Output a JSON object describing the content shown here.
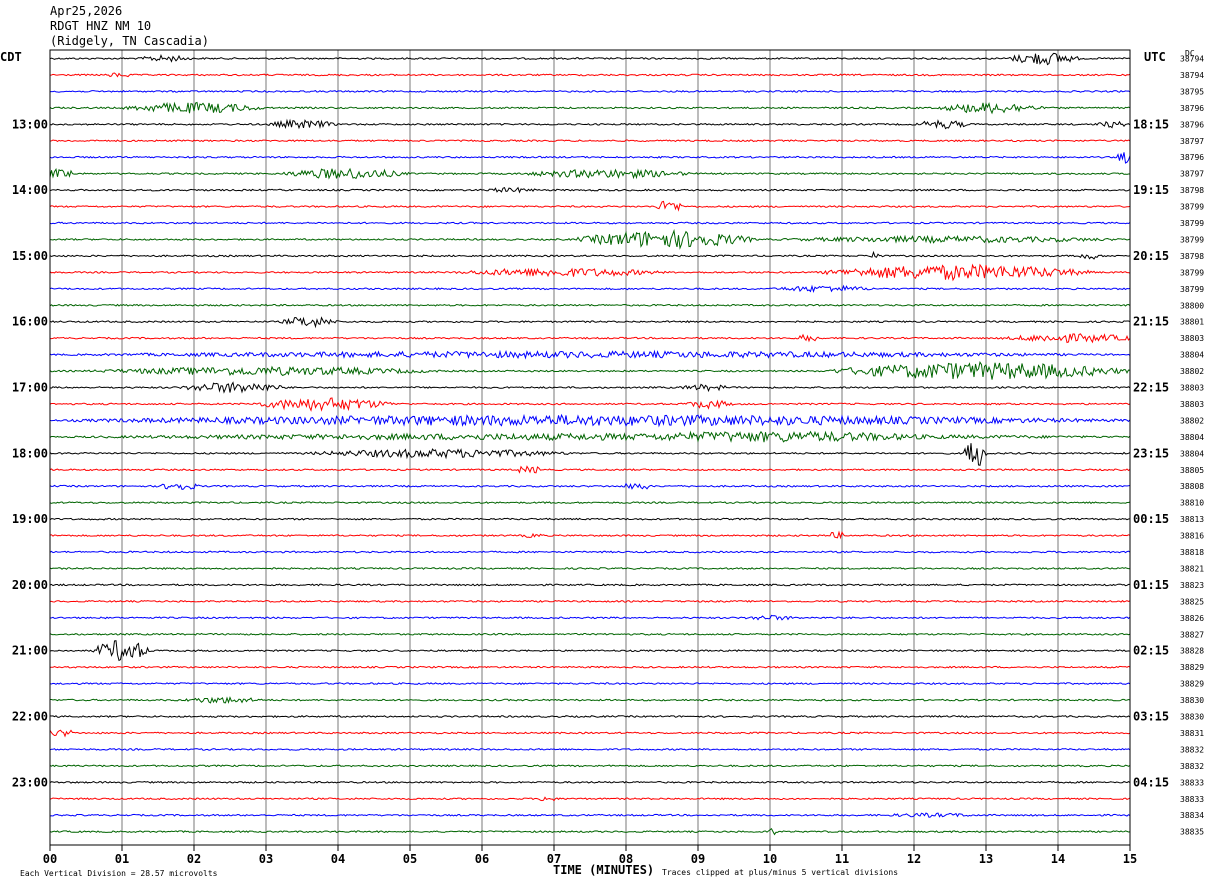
{
  "header": {
    "date": "Apr25,2026",
    "station": "RDGT HNZ NM 10",
    "location": "(Ridgely, TN Cascadia)"
  },
  "left_axis_label": "CDT",
  "right_axis_label": "UTC",
  "dc_label": "DC",
  "footer": {
    "vertical_division": "Each Vertical Division =   28.57 microvolts",
    "xlabel": "TIME (MINUTES)",
    "clip_note": "Traces clipped at plus/minus 5 vertical divisions"
  },
  "colors": {
    "trace_cycle": [
      "#000000",
      "#ff0000",
      "#0000ff",
      "#006400"
    ],
    "grid": "#7a7a7a",
    "frame": "#000000"
  },
  "chart_data": {
    "type": "line",
    "title": "RDGT HNZ NM 10",
    "xlabel": "TIME (MINUTES)",
    "xlim": [
      0,
      15
    ],
    "x_tick_labels": [
      "00",
      "01",
      "02",
      "03",
      "04",
      "05",
      "06",
      "07",
      "08",
      "09",
      "10",
      "11",
      "12",
      "13",
      "14",
      "15"
    ],
    "trace_count": 48,
    "trace_minutes": 15,
    "left_hour_labels": [
      "13:00",
      "14:00",
      "15:00",
      "16:00",
      "17:00",
      "18:00",
      "19:00",
      "20:00",
      "21:00",
      "22:00",
      "23:00"
    ],
    "right_hour_labels": [
      "18:15",
      "19:15",
      "20:15",
      "21:15",
      "22:15",
      "23:15",
      "00:15",
      "01:15",
      "02:15",
      "03:15",
      "04:15"
    ],
    "first_labeled_trace": 4,
    "dc_offsets": [
      "38794",
      "38794",
      "38795",
      "38796",
      "38796",
      "38797",
      "38796",
      "38797",
      "38798",
      "38799",
      "38799",
      "38799",
      "38798",
      "38799",
      "38799",
      "38800",
      "38801",
      "38803",
      "38804",
      "38802",
      "38803",
      "38803",
      "38802",
      "38804",
      "38804",
      "38805",
      "38808",
      "38810",
      "38813",
      "38816",
      "38818",
      "38821",
      "38823",
      "38825",
      "38826",
      "38827",
      "38828",
      "38829",
      "38829",
      "38830",
      "38830",
      "38831",
      "38832",
      "38832",
      "38833",
      "38833",
      "38834",
      "38835"
    ],
    "events": [
      {
        "trace": 0,
        "minute": 13.3,
        "amp": 3,
        "dur": 1.0
      },
      {
        "trace": 0,
        "minute": 1.2,
        "amp": 1.5,
        "dur": 0.8
      },
      {
        "trace": 1,
        "minute": 0.8,
        "amp": 1,
        "dur": 0.3
      },
      {
        "trace": 3,
        "minute": 1.0,
        "amp": 2.5,
        "dur": 2.0
      },
      {
        "trace": 3,
        "minute": 12.3,
        "amp": 2.5,
        "dur": 1.5
      },
      {
        "trace": 4,
        "minute": 3.0,
        "amp": 2,
        "dur": 1.0
      },
      {
        "trace": 4,
        "minute": 12.0,
        "amp": 2,
        "dur": 0.8
      },
      {
        "trace": 4,
        "minute": 14.5,
        "amp": 1.5,
        "dur": 0.5
      },
      {
        "trace": 6,
        "minute": 14.8,
        "amp": 3,
        "dur": 0.4
      },
      {
        "trace": 7,
        "minute": 0.0,
        "amp": 2,
        "dur": 0.3
      },
      {
        "trace": 7,
        "minute": 3.2,
        "amp": 2.5,
        "dur": 1.8
      },
      {
        "trace": 7,
        "minute": 6.5,
        "amp": 2,
        "dur": 2.5
      },
      {
        "trace": 8,
        "minute": 6.0,
        "amp": 1.2,
        "dur": 0.8
      },
      {
        "trace": 9,
        "minute": 8.4,
        "amp": 3,
        "dur": 0.4
      },
      {
        "trace": 11,
        "minute": 7.3,
        "amp": 4,
        "dur": 2.5
      },
      {
        "trace": 11,
        "minute": 10.0,
        "amp": 1.5,
        "dur": 5.0
      },
      {
        "trace": 12,
        "minute": 11.4,
        "amp": 5,
        "dur": 0.1
      },
      {
        "trace": 12,
        "minute": 14.3,
        "amp": 1.5,
        "dur": 0.3
      },
      {
        "trace": 13,
        "minute": 5.6,
        "amp": 2,
        "dur": 3.0
      },
      {
        "trace": 13,
        "minute": 10.7,
        "amp": 3.5,
        "dur": 3.8
      },
      {
        "trace": 14,
        "minute": 10.0,
        "amp": 1.5,
        "dur": 1.5
      },
      {
        "trace": 16,
        "minute": 3.2,
        "amp": 2.5,
        "dur": 0.8
      },
      {
        "trace": 17,
        "minute": 10.4,
        "amp": 1.5,
        "dur": 0.3
      },
      {
        "trace": 17,
        "minute": 13.2,
        "amp": 2,
        "dur": 2.0
      },
      {
        "trace": 18,
        "minute": 0.0,
        "amp": 1.5,
        "dur": 15.0
      },
      {
        "trace": 19,
        "minute": 0.5,
        "amp": 2,
        "dur": 5.0
      },
      {
        "trace": 19,
        "minute": 10.8,
        "amp": 4,
        "dur": 4.2
      },
      {
        "trace": 20,
        "minute": 1.8,
        "amp": 2.5,
        "dur": 1.5
      },
      {
        "trace": 20,
        "minute": 8.7,
        "amp": 1.5,
        "dur": 0.8
      },
      {
        "trace": 21,
        "minute": 2.8,
        "amp": 3,
        "dur": 2.0
      },
      {
        "trace": 21,
        "minute": 8.8,
        "amp": 2,
        "dur": 0.7
      },
      {
        "trace": 22,
        "minute": 0.2,
        "amp": 2.5,
        "dur": 14.8
      },
      {
        "trace": 23,
        "minute": 0.0,
        "amp": 1.5,
        "dur": 15.0
      },
      {
        "trace": 23,
        "minute": 7.5,
        "amp": 2.5,
        "dur": 5.0
      },
      {
        "trace": 24,
        "minute": 3.5,
        "amp": 2,
        "dur": 3.8
      },
      {
        "trace": 24,
        "minute": 12.7,
        "amp": 6,
        "dur": 0.3
      },
      {
        "trace": 25,
        "minute": 6.5,
        "amp": 1.5,
        "dur": 0.3
      },
      {
        "trace": 26,
        "minute": 1.5,
        "amp": 2,
        "dur": 0.6
      },
      {
        "trace": 26,
        "minute": 8.0,
        "amp": 1.5,
        "dur": 0.3
      },
      {
        "trace": 29,
        "minute": 6.5,
        "amp": 1,
        "dur": 0.4
      },
      {
        "trace": 29,
        "minute": 10.8,
        "amp": 1.5,
        "dur": 0.2
      },
      {
        "trace": 34,
        "minute": 9.6,
        "amp": 1.2,
        "dur": 0.8
      },
      {
        "trace": 36,
        "minute": 0.6,
        "amp": 5,
        "dur": 0.8
      },
      {
        "trace": 39,
        "minute": 1.8,
        "amp": 1.5,
        "dur": 1.2
      },
      {
        "trace": 41,
        "minute": 0.0,
        "amp": 1.5,
        "dur": 0.3
      },
      {
        "trace": 45,
        "minute": 6.8,
        "amp": 1.2,
        "dur": 0.2
      },
      {
        "trace": 46,
        "minute": 11.5,
        "amp": 1,
        "dur": 1.5
      },
      {
        "trace": 47,
        "minute": 10.0,
        "amp": 2,
        "dur": 0.1
      }
    ]
  }
}
